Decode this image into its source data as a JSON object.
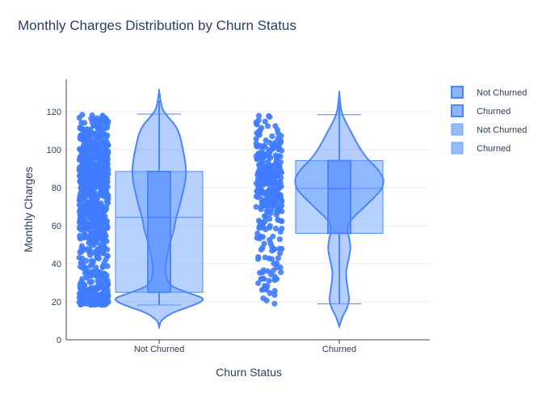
{
  "chart_data": {
    "type": "violin+box+strip",
    "title": "Monthly Charges Distribution by Churn Status",
    "xlabel": "Churn Status",
    "ylabel": "Monthly Charges",
    "categories": [
      "Not Churned",
      "Churned"
    ],
    "ylim": [
      0,
      137
    ],
    "yticks": [
      0,
      20,
      40,
      60,
      80,
      100,
      120
    ],
    "colors": {
      "violin_line": "#4a86ff",
      "violin_fill": "#6aa0ff",
      "box_fill": "#7eadff",
      "points": "#3f7cff",
      "grid": "#e8edf5"
    },
    "box_stats": [
      {
        "name": "Not Churned",
        "min": 18.3,
        "q1": 25.0,
        "median": 64.4,
        "q3": 88.5,
        "max": 118.7
      },
      {
        "name": "Churned",
        "min": 18.9,
        "q1": 56.0,
        "median": 79.6,
        "q3": 94.2,
        "max": 118.4
      }
    ],
    "violins": [
      {
        "name": "Not Churned",
        "range": [
          6.5,
          131
        ],
        "density": [
          [
            6.5,
            0.0
          ],
          [
            10,
            0.05
          ],
          [
            14,
            0.28
          ],
          [
            18,
            0.72
          ],
          [
            20,
            0.9
          ],
          [
            22,
            0.93
          ],
          [
            25,
            0.6
          ],
          [
            28,
            0.3
          ],
          [
            32,
            0.17
          ],
          [
            38,
            0.14
          ],
          [
            45,
            0.18
          ],
          [
            52,
            0.25
          ],
          [
            58,
            0.32
          ],
          [
            64,
            0.37
          ],
          [
            70,
            0.44
          ],
          [
            78,
            0.52
          ],
          [
            84,
            0.57
          ],
          [
            90,
            0.58
          ],
          [
            96,
            0.55
          ],
          [
            102,
            0.5
          ],
          [
            108,
            0.44
          ],
          [
            113,
            0.34
          ],
          [
            117,
            0.2
          ],
          [
            121,
            0.08
          ],
          [
            126,
            0.03
          ],
          [
            131,
            0.0
          ]
        ]
      },
      {
        "name": "Churned",
        "range": [
          7.0,
          130
        ],
        "density": [
          [
            7.0,
            0.0
          ],
          [
            12,
            0.07
          ],
          [
            17,
            0.17
          ],
          [
            21,
            0.21
          ],
          [
            26,
            0.19
          ],
          [
            31,
            0.16
          ],
          [
            36,
            0.15
          ],
          [
            42,
            0.2
          ],
          [
            48,
            0.24
          ],
          [
            53,
            0.22
          ],
          [
            58,
            0.18
          ],
          [
            63,
            0.26
          ],
          [
            70,
            0.55
          ],
          [
            76,
            0.8
          ],
          [
            80,
            0.93
          ],
          [
            85,
            0.95
          ],
          [
            90,
            0.82
          ],
          [
            95,
            0.62
          ],
          [
            100,
            0.47
          ],
          [
            105,
            0.35
          ],
          [
            110,
            0.24
          ],
          [
            115,
            0.13
          ],
          [
            120,
            0.05
          ],
          [
            125,
            0.02
          ],
          [
            130,
            0.0
          ]
        ]
      }
    ],
    "legend": [
      {
        "label": "Not Churned",
        "kind": "box"
      },
      {
        "label": "Churned",
        "kind": "box"
      },
      {
        "label": "Not Churned",
        "kind": "violin"
      },
      {
        "label": "Churned",
        "kind": "violin"
      }
    ]
  }
}
